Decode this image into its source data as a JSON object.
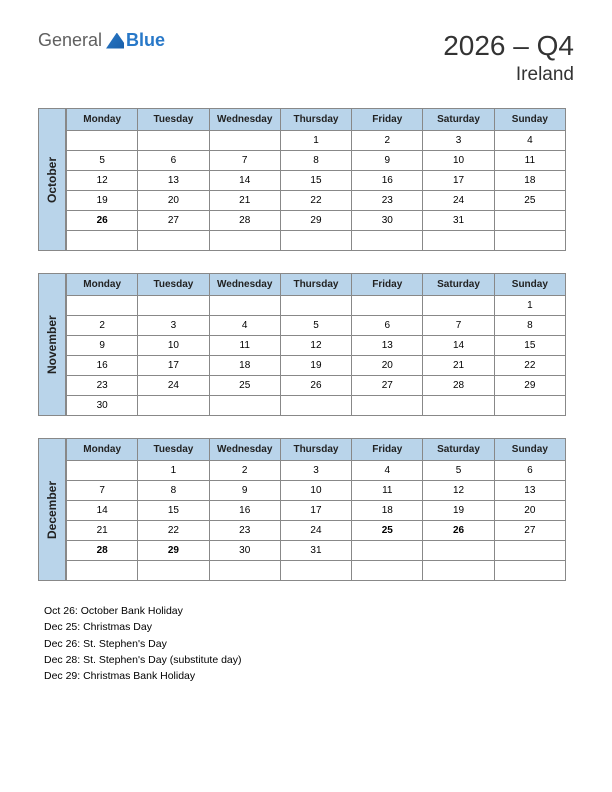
{
  "logo": {
    "general": "General",
    "blue": "Blue"
  },
  "title": {
    "main": "2026 – Q4",
    "sub": "Ireland"
  },
  "day_headers": [
    "Monday",
    "Tuesday",
    "Wednesday",
    "Thursday",
    "Friday",
    "Saturday",
    "Sunday"
  ],
  "colors": {
    "header_bg": "#b9d4ea",
    "border": "#888888",
    "holiday": "#d62020",
    "text": "#000000",
    "background": "#ffffff"
  },
  "months": [
    {
      "name": "October",
      "weeks": [
        [
          "",
          "",
          "",
          "1",
          "2",
          "3",
          "4"
        ],
        [
          "5",
          "6",
          "7",
          "8",
          "9",
          "10",
          "11"
        ],
        [
          "12",
          "13",
          "14",
          "15",
          "16",
          "17",
          "18"
        ],
        [
          "19",
          "20",
          "21",
          "22",
          "23",
          "24",
          "25"
        ],
        [
          "26",
          "27",
          "28",
          "29",
          "30",
          "31",
          ""
        ],
        [
          "",
          "",
          "",
          "",
          "",
          "",
          ""
        ]
      ],
      "holidays": [
        "26"
      ]
    },
    {
      "name": "November",
      "weeks": [
        [
          "",
          "",
          "",
          "",
          "",
          "",
          "1"
        ],
        [
          "2",
          "3",
          "4",
          "5",
          "6",
          "7",
          "8"
        ],
        [
          "9",
          "10",
          "11",
          "12",
          "13",
          "14",
          "15"
        ],
        [
          "16",
          "17",
          "18",
          "19",
          "20",
          "21",
          "22"
        ],
        [
          "23",
          "24",
          "25",
          "26",
          "27",
          "28",
          "29"
        ],
        [
          "30",
          "",
          "",
          "",
          "",
          "",
          ""
        ]
      ],
      "holidays": []
    },
    {
      "name": "December",
      "weeks": [
        [
          "",
          "1",
          "2",
          "3",
          "4",
          "5",
          "6"
        ],
        [
          "7",
          "8",
          "9",
          "10",
          "11",
          "12",
          "13"
        ],
        [
          "14",
          "15",
          "16",
          "17",
          "18",
          "19",
          "20"
        ],
        [
          "21",
          "22",
          "23",
          "24",
          "25",
          "26",
          "27"
        ],
        [
          "28",
          "29",
          "30",
          "31",
          "",
          "",
          ""
        ],
        [
          "",
          "",
          "",
          "",
          "",
          "",
          ""
        ]
      ],
      "holidays": [
        "25",
        "26",
        "28",
        "29"
      ]
    }
  ],
  "holiday_list": [
    "Oct 26: October Bank Holiday",
    "Dec 25: Christmas Day",
    "Dec 26: St. Stephen's Day",
    "Dec 28: St. Stephen's Day (substitute day)",
    "Dec 29: Christmas Bank Holiday"
  ]
}
